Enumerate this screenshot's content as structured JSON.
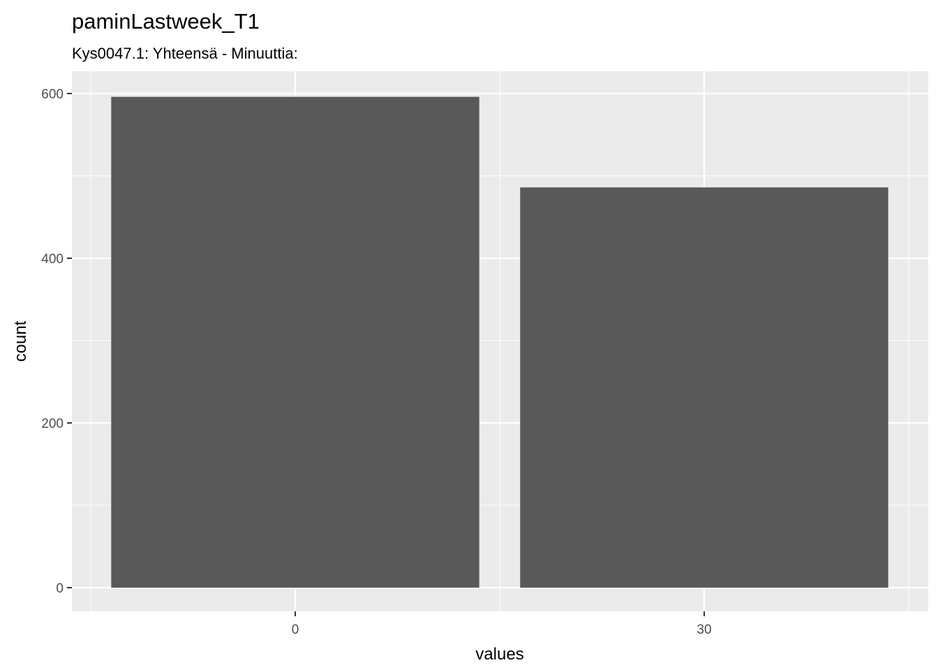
{
  "chart_data": {
    "type": "bar",
    "title": "paminLastweek_T1",
    "subtitle": "Kys0047.1: Yhteensä - Minuuttia:",
    "xlabel": "values",
    "ylabel": "count",
    "categories": [
      "0",
      "30"
    ],
    "values": [
      596,
      486
    ],
    "ylim": [
      0,
      600
    ],
    "yticks": [
      0,
      200,
      400,
      600
    ],
    "ytick_labels": [
      "0",
      "200",
      "400",
      "600"
    ],
    "grid": true,
    "legend": "none",
    "colors": {
      "bar": "#595959",
      "panel": "#ebebeb",
      "grid": "#ffffff"
    }
  }
}
